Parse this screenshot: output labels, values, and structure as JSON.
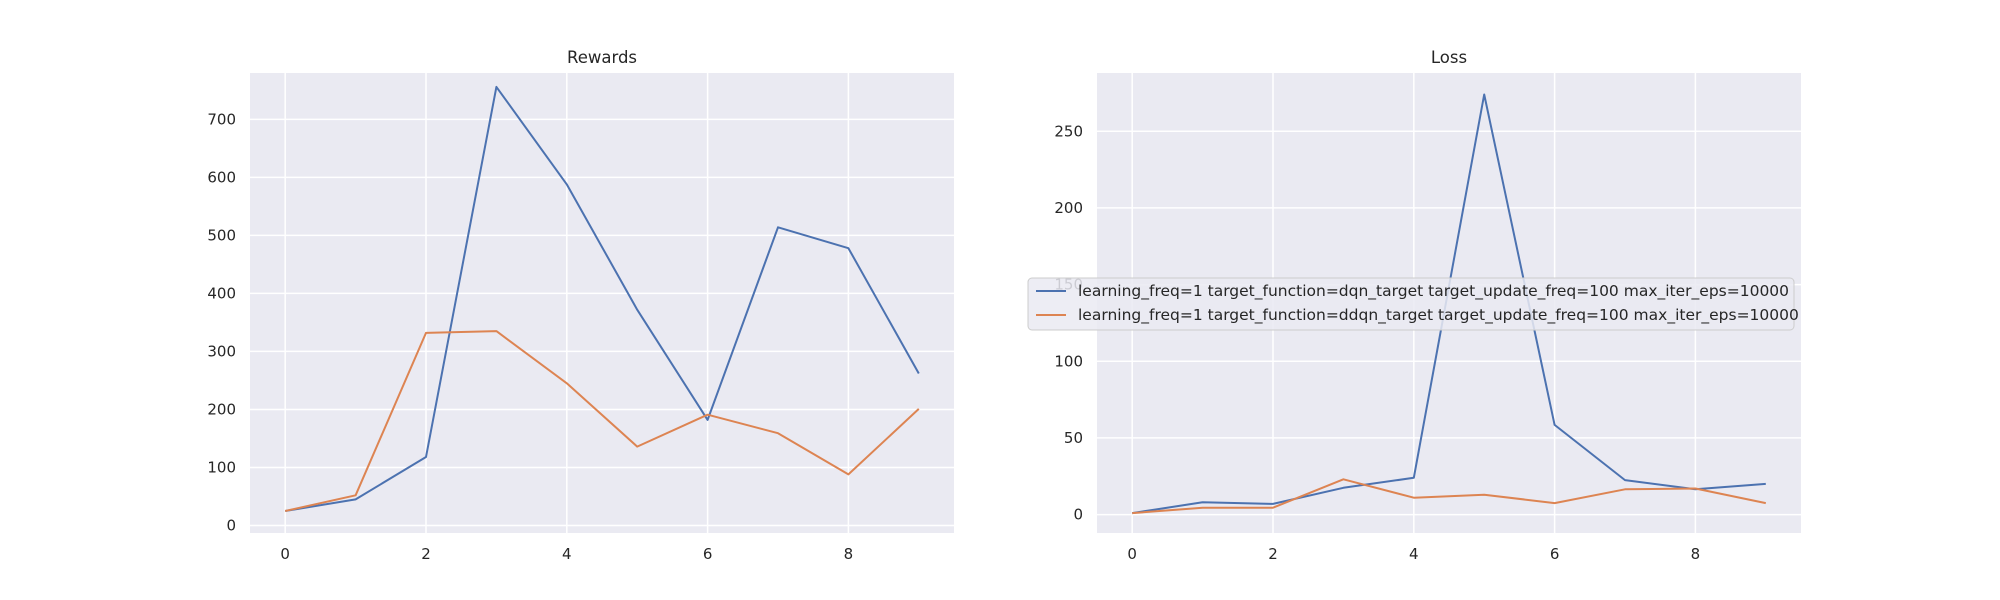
{
  "colors": {
    "series_0": "#4c72b0",
    "series_1": "#dd8452",
    "plot_background": "#eaeaf2"
  },
  "chart_data": [
    {
      "type": "line",
      "title": "Rewards",
      "xlabel": "",
      "ylabel": "",
      "x": [
        0,
        1,
        2,
        3,
        4,
        5,
        6,
        7,
        8,
        9
      ],
      "xlim": [
        -0.5,
        9.5
      ],
      "ylim": [
        -13,
        780
      ],
      "xticks": [
        0,
        2,
        4,
        6,
        8
      ],
      "yticks": [
        0,
        100,
        200,
        300,
        400,
        500,
        600,
        700
      ],
      "grid": true,
      "series": [
        {
          "name": "learning_freq=1 target_function=dqn_target target_update_freq=100 max_iter_eps=10000",
          "values": [
            25,
            45,
            118,
            756,
            588,
            372,
            182,
            514,
            478,
            262
          ]
        },
        {
          "name": "learning_freq=1 target_function=ddqn_target target_update_freq=100 max_iter_eps=10000",
          "values": [
            25,
            52,
            332,
            335,
            245,
            136,
            191,
            159,
            88,
            201
          ]
        }
      ]
    },
    {
      "type": "line",
      "title": "Loss",
      "xlabel": "",
      "ylabel": "",
      "x": [
        0,
        1,
        2,
        3,
        4,
        5,
        6,
        7,
        8,
        9
      ],
      "xlim": [
        -0.5,
        9.5
      ],
      "ylim": [
        -12,
        288
      ],
      "xticks": [
        0,
        2,
        4,
        6,
        8
      ],
      "yticks": [
        0,
        50,
        100,
        150,
        200,
        250
      ],
      "grid": true,
      "legend": "center-right",
      "series": [
        {
          "name": "learning_freq=1 target_function=dqn_target target_update_freq=100 max_iter_eps=10000",
          "values": [
            1,
            8,
            7,
            17.5,
            24,
            274,
            58.5,
            22.5,
            16.5,
            20
          ]
        },
        {
          "name": "learning_freq=1 target_function=ddqn_target target_update_freq=100 max_iter_eps=10000",
          "values": [
            1,
            4.5,
            4.5,
            23,
            11,
            13,
            7.5,
            16.5,
            17,
            7.5
          ]
        }
      ]
    }
  ]
}
